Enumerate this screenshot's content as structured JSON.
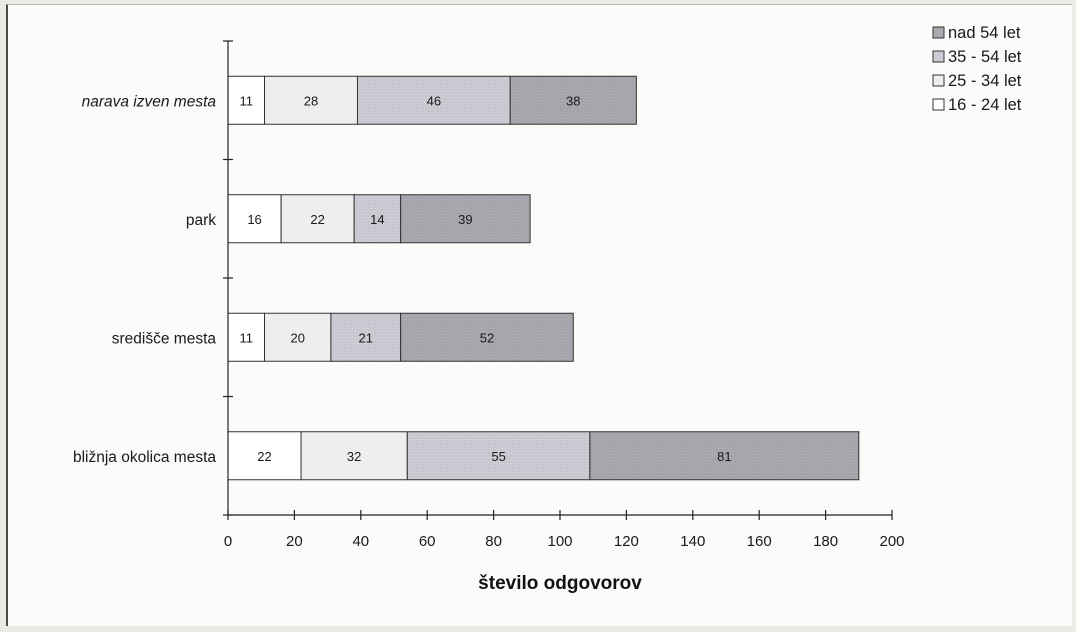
{
  "chart_data": {
    "type": "bar",
    "orientation": "horizontal",
    "stacked": true,
    "categories": [
      "narava izven mesta",
      "park",
      "središče mesta",
      "bližnja okolica mesta"
    ],
    "category_italic": [
      true,
      false,
      false,
      false
    ],
    "series": [
      {
        "name": "16 - 24 let",
        "values": [
          11,
          16,
          11,
          22
        ],
        "color": "#ffffff"
      },
      {
        "name": "25 - 34 let",
        "values": [
          28,
          22,
          20,
          32
        ],
        "color": "#eeeeee"
      },
      {
        "name": "35 - 54 let",
        "values": [
          46,
          14,
          21,
          55
        ],
        "color": "#cdcdd6"
      },
      {
        "name": "nad 54 let",
        "values": [
          38,
          39,
          52,
          81
        ],
        "color": "#a9a9b0"
      }
    ],
    "legend_order": [
      "nad 54 let",
      "35 - 54 let",
      "25 - 34 let",
      "16 - 24 let"
    ],
    "legend_position": "top-right",
    "xticks": [
      0,
      20,
      40,
      60,
      80,
      100,
      120,
      140,
      160,
      180,
      200
    ],
    "xlim": [
      0,
      200
    ],
    "xlabel": "število odgovorov",
    "ylabel": "",
    "title": "",
    "grid": false
  }
}
